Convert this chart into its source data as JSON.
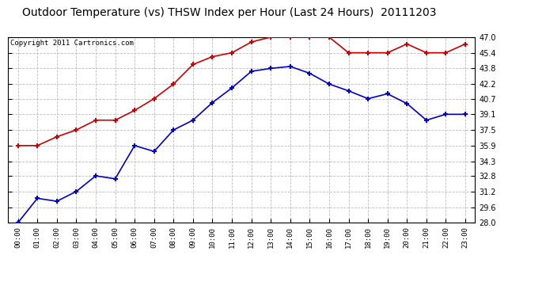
{
  "title": "Outdoor Temperature (vs) THSW Index per Hour (Last 24 Hours)  20111203",
  "copyright": "Copyright 2011 Cartronics.com",
  "x_labels": [
    "00:00",
    "01:00",
    "02:00",
    "03:00",
    "04:00",
    "05:00",
    "06:00",
    "07:00",
    "08:00",
    "09:00",
    "10:00",
    "11:00",
    "12:00",
    "13:00",
    "14:00",
    "15:00",
    "16:00",
    "17:00",
    "18:00",
    "19:00",
    "20:00",
    "21:00",
    "22:00",
    "23:00"
  ],
  "temp_data": [
    28.0,
    30.5,
    30.2,
    31.2,
    32.8,
    32.5,
    35.9,
    35.3,
    37.5,
    38.5,
    40.3,
    41.8,
    43.5,
    43.8,
    44.0,
    43.3,
    42.2,
    41.5,
    40.7,
    41.2,
    40.2,
    38.5,
    39.1,
    39.1
  ],
  "thsw_data": [
    35.9,
    35.9,
    36.8,
    37.5,
    38.5,
    38.5,
    39.5,
    40.7,
    42.2,
    44.2,
    45.0,
    45.4,
    46.5,
    47.0,
    47.0,
    47.0,
    47.0,
    45.4,
    45.4,
    45.4,
    46.3,
    45.4,
    45.4,
    46.3
  ],
  "temp_color": "#0000CC",
  "thsw_color": "#CC0000",
  "ylim": [
    28.0,
    47.0
  ],
  "yticks": [
    28.0,
    29.6,
    31.2,
    32.8,
    34.3,
    35.9,
    37.5,
    39.1,
    40.7,
    42.2,
    43.8,
    45.4,
    47.0
  ],
  "bg_color": "#ffffff",
  "grid_color": "#bbbbbb",
  "title_fontsize": 10,
  "copyright_fontsize": 6.5
}
